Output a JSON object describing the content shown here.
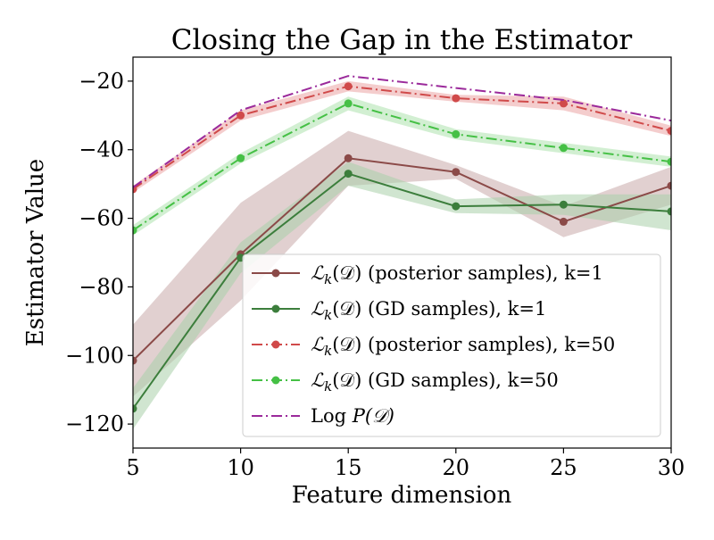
{
  "chart_data": {
    "type": "line",
    "title": "Closing the Gap in the Estimator",
    "xlabel": "Feature dimension",
    "ylabel": "Estimator Value",
    "x": [
      5,
      10,
      15,
      20,
      25,
      30
    ],
    "xlim": [
      5,
      30
    ],
    "ylim": [
      -127,
      -13
    ],
    "x_ticks": [
      5,
      10,
      15,
      20,
      25,
      30
    ],
    "y_ticks": [
      -120,
      -100,
      -80,
      -60,
      -40,
      -20
    ],
    "x_tick_labels": [
      "5",
      "10",
      "15",
      "20",
      "25",
      "30"
    ],
    "y_tick_labels": [
      "−120",
      "−100",
      "−80",
      "−60",
      "−40",
      "−20"
    ],
    "grid": false,
    "legend_position": "lower-right",
    "series": [
      {
        "name": "ℒk(𝒟) (posterior samples), k=1",
        "legend_math": "ℒ",
        "legend_sub": "k",
        "legend_arg": "(𝒟)",
        "legend_suffix": " (posterior samples), k=1",
        "values": [
          -101.5,
          -70.5,
          -42.5,
          -46.5,
          -61,
          -50.5
        ],
        "band_lower": [
          -112,
          -84,
          -50.5,
          -48.5,
          -65.5,
          -56
        ],
        "band_upper": [
          -91,
          -55.5,
          -34.5,
          -44.5,
          -56.5,
          -45
        ],
        "color": "#8b4a48",
        "band_color": "#c9a9a9",
        "line_style": "solid",
        "marker": "circle"
      },
      {
        "name": "ℒk(𝒟) (GD samples), k=1",
        "legend_math": "ℒ",
        "legend_sub": "k",
        "legend_arg": "(𝒟)",
        "legend_suffix": " (GD samples), k=1",
        "values": [
          -115.5,
          -71.5,
          -47,
          -56.5,
          -56,
          -58
        ],
        "band_lower": [
          -121.5,
          -76,
          -50.5,
          -58.5,
          -59,
          -63.5
        ],
        "band_upper": [
          -109.5,
          -67,
          -43.5,
          -54.5,
          -53,
          -53
        ],
        "color": "#3c7e3c",
        "band_color": "#a9cfa9",
        "line_style": "solid",
        "marker": "circle"
      },
      {
        "name": "ℒk(𝒟) (posterior samples), k=50",
        "legend_math": "ℒ",
        "legend_sub": "k",
        "legend_arg": "(𝒟)",
        "legend_suffix": " (posterior samples), k=50",
        "values": [
          -51.5,
          -30,
          -21.5,
          -25,
          -26.5,
          -34.5
        ],
        "band_lower": [
          -52.5,
          -31.5,
          -23,
          -26,
          -28.5,
          -36
        ],
        "band_upper": [
          -50.5,
          -28.5,
          -20,
          -24,
          -24.5,
          -33
        ],
        "color": "#d04a4a",
        "band_color": "#f0b8b8",
        "line_style": "dashdot",
        "marker": "circle"
      },
      {
        "name": "ℒk(𝒟) (GD samples), k=50",
        "legend_math": "ℒ",
        "legend_sub": "k",
        "legend_arg": "(𝒟)",
        "legend_suffix": " (GD samples), k=50",
        "values": [
          -63.5,
          -42.5,
          -26.5,
          -35.5,
          -39.5,
          -43.5
        ],
        "band_lower": [
          -65,
          -44,
          -28.5,
          -37,
          -41,
          -45
        ],
        "band_upper": [
          -62,
          -41,
          -24.5,
          -34,
          -38,
          -42
        ],
        "color": "#45c045",
        "band_color": "#bfe8bf",
        "line_style": "dashdot",
        "marker": "circle"
      },
      {
        "name": "Log P(𝒟)",
        "legend_math": "Log ",
        "legend_sub": "",
        "legend_arg": "P(𝒟)",
        "legend_suffix": "",
        "values": [
          -51,
          -28.5,
          -18.5,
          -22,
          -25.5,
          -31.5
        ],
        "color": "#9b2a9b",
        "line_style": "dashdot",
        "marker": "none"
      }
    ]
  }
}
